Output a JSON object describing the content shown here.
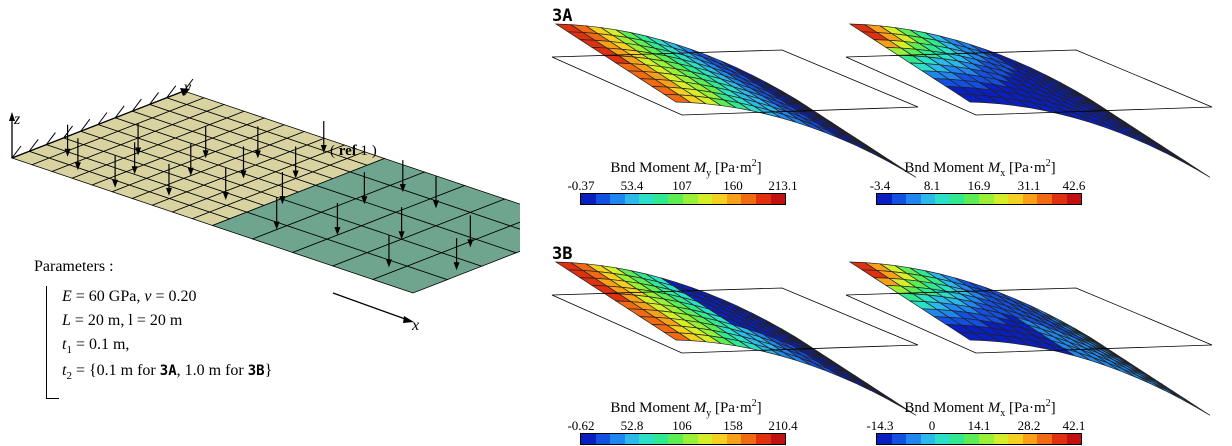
{
  "schematic": {
    "axis_x": "x",
    "axis_y": "y",
    "axis_z": "z",
    "ref_label_bold": "ref",
    "ref_label_num": "1"
  },
  "parameters": {
    "title": "Parameters :",
    "line1_E": "E",
    "line1_E_val": " = 60 GPa, ",
    "line1_nu": "ν",
    "line1_nu_val": " = 0.20",
    "line2_L": "L",
    "line2_text": " = 20 m, l = 20 m",
    "line3_t": "t",
    "line3_sub": "1",
    "line3_text": " = 0.1 m,",
    "line4_t": "t",
    "line4_sub": "2",
    "line4_pre": " = {0.1 m  for ",
    "line4_case_a": "3A",
    "line4_mid": ", 1.0 m  for ",
    "line4_case_b": "3B",
    "line4_end": "}"
  },
  "cases": [
    {
      "label": "3A",
      "plots": [
        {
          "title_pre": "Bnd Moment ",
          "sym": "M",
          "sub": "y",
          "unit": " [Pa·m",
          "sup": "2",
          "unit_end": "]",
          "ticks": [
            "-0.37",
            "53.4",
            "107",
            "160",
            "213.1"
          ]
        },
        {
          "title_pre": "Bnd Moment ",
          "sym": "M",
          "sub": "x",
          "unit": " [Pa·m",
          "sup": "2",
          "unit_end": "]",
          "ticks": [
            "-3.4",
            "8.1",
            "16.9",
            "31.1",
            "42.6"
          ]
        }
      ]
    },
    {
      "label": "3B",
      "plots": [
        {
          "title_pre": "Bnd Moment ",
          "sym": "M",
          "sub": "y",
          "unit": " [Pa·m",
          "sup": "2",
          "unit_end": "]",
          "ticks": [
            "-0.62",
            "52.8",
            "106",
            "158",
            "210.4"
          ]
        },
        {
          "title_pre": "Bnd Moment ",
          "sym": "M",
          "sub": "x",
          "unit": " [Pa·m",
          "sup": "2",
          "unit_end": "]",
          "ticks": [
            "-14.3",
            "0",
            "14.1",
            "28.2",
            "42.1"
          ]
        }
      ]
    }
  ],
  "colors": {
    "plate_ref": "#d8d3a0",
    "plate_rest": "#6fa48e",
    "colormap": [
      "#0a1fbf",
      "#1450e0",
      "#1e86ee",
      "#2bb8ea",
      "#2ce0c8",
      "#2fe890",
      "#5cec54",
      "#9af036",
      "#d4ee2a",
      "#f4d020",
      "#f8a018",
      "#f06a14",
      "#e03010",
      "#c01010"
    ]
  }
}
